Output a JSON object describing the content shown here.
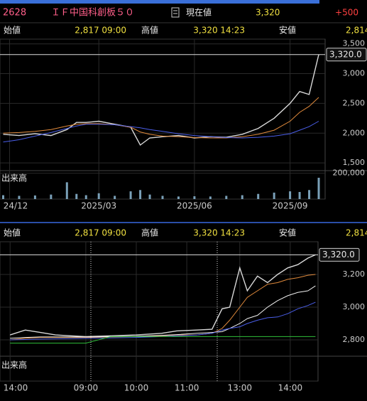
{
  "header": {
    "code": "2628",
    "name": "ＩＦ中国科創板５０",
    "price_label": "現在値",
    "price": "3,320",
    "change": "+500"
  },
  "stats": {
    "open_label": "始値",
    "open": "2,817 09:00",
    "high_label": "高値",
    "high": "3,320 14:23",
    "low_label": "安値",
    "low": "2,814"
  },
  "chart_data": [
    {
      "type": "line",
      "x": [
        0,
        0.5,
        1,
        1.5,
        2,
        2.3,
        2.6,
        3,
        3.5,
        4,
        4.3,
        4.6,
        5,
        5.5,
        6,
        6.5,
        7,
        7.5,
        8,
        8.5,
        9,
        9.3,
        9.6,
        9.9
      ],
      "xlim": [
        -0.1,
        10.1
      ],
      "xticks": [
        {
          "value": 0.2,
          "label": "24/12"
        },
        {
          "value": 3,
          "label": "2025/03"
        },
        {
          "value": 6,
          "label": "2025/06"
        },
        {
          "value": 9,
          "label": "2025/09"
        }
      ],
      "ylim": [
        1370,
        3580
      ],
      "yticks": [
        {
          "value": 3500,
          "label": "3,500"
        },
        {
          "value": 3000,
          "label": "3,000"
        },
        {
          "value": 2500,
          "label": "2,500"
        },
        {
          "value": 2000,
          "label": "2,000"
        },
        {
          "value": 1500,
          "label": "1,500"
        }
      ],
      "grid": true,
      "last_value": 3320,
      "last_label": "3,320.0",
      "series": [
        {
          "color": "#d8d8d8",
          "values": [
            1980,
            1960,
            1990,
            1960,
            2060,
            2180,
            2180,
            2200,
            2150,
            2100,
            1800,
            1920,
            1940,
            1960,
            1920,
            1940,
            1930,
            1980,
            2080,
            2250,
            2500,
            2700,
            2650,
            3320
          ]
        },
        {
          "color": "#e08a3c",
          "values": [
            2000,
            2010,
            2030,
            2060,
            2120,
            2150,
            2160,
            2160,
            2140,
            2100,
            2020,
            1980,
            1950,
            1940,
            1925,
            1920,
            1920,
            1940,
            1980,
            2050,
            2200,
            2350,
            2450,
            2600
          ]
        },
        {
          "color": "#4a5ee8",
          "values": [
            1850,
            1890,
            1950,
            2010,
            2080,
            2120,
            2150,
            2150,
            2140,
            2110,
            2090,
            2060,
            2030,
            1990,
            1960,
            1940,
            1925,
            1920,
            1930,
            1950,
            1990,
            2050,
            2110,
            2200
          ]
        }
      ],
      "volume": {
        "label": "出来高",
        "color": "#7aa0b8",
        "values": [
          30000,
          25000,
          28000,
          35000,
          130000,
          40000,
          30000,
          45000,
          25000,
          60000,
          70000,
          35000,
          25000,
          20000,
          22000,
          20000,
          25000,
          30000,
          40000,
          50000,
          60000,
          55000,
          70000,
          165000
        ],
        "ylim": [
          0,
          220000
        ],
        "yticks": [
          {
            "value": 200000,
            "label": "200,000"
          }
        ]
      }
    },
    {
      "type": "line",
      "x": [
        0,
        0.3,
        0.6,
        0.9,
        1.2,
        1.5,
        2,
        2.5,
        3,
        3.3,
        3.7,
        4,
        4.2,
        4.35,
        4.55,
        4.7,
        4.9,
        5.1,
        5.3,
        5.5,
        5.7,
        5.9,
        6.05
      ],
      "xlim": [
        -0.2,
        6.1
      ],
      "xticks": [
        {
          "value": 0,
          "label": "14:00"
        },
        {
          "value": 1.5,
          "label": "09:00"
        },
        {
          "value": 2.5,
          "label": "10:00"
        },
        {
          "value": 3.5,
          "label": "11:00"
        },
        {
          "value": 4.55,
          "label": "13:00"
        },
        {
          "value": 5.55,
          "label": "14:00"
        }
      ],
      "ylim": [
        2700,
        3400
      ],
      "yticks": [
        {
          "value": 3200,
          "label": "3,200"
        },
        {
          "value": 3000,
          "label": "3,000"
        },
        {
          "value": 2800,
          "label": "2,800"
        }
      ],
      "grid": true,
      "last_value": 3320,
      "last_label": "3,320.0",
      "series": [
        {
          "color": "#d8d8d8",
          "values": [
            2830,
            2860,
            2845,
            2830,
            2825,
            2820,
            2825,
            2830,
            2840,
            2855,
            2860,
            2865,
            2990,
            3000,
            3240,
            3100,
            3190,
            3150,
            3200,
            3240,
            3260,
            3300,
            3320
          ]
        },
        {
          "color": "#e08a3c",
          "values": [
            2800,
            2810,
            2815,
            2815,
            2815,
            2815,
            2818,
            2820,
            2825,
            2830,
            2830,
            2840,
            2870,
            2920,
            3000,
            3060,
            3100,
            3140,
            3150,
            3170,
            3180,
            3195,
            3200
          ]
        },
        {
          "color": "#f0f0f0",
          "values": [
            2810,
            2815,
            2818,
            2818,
            2818,
            2818,
            2820,
            2822,
            2828,
            2832,
            2840,
            2845,
            2850,
            2870,
            2900,
            2930,
            2950,
            3000,
            3040,
            3070,
            3090,
            3100,
            3130
          ]
        },
        {
          "color": "#4a5ee8",
          "values": [
            2800,
            2802,
            2805,
            2806,
            2808,
            2810,
            2812,
            2815,
            2820,
            2825,
            2830,
            2840,
            2860,
            2870,
            2880,
            2900,
            2920,
            2935,
            2940,
            2960,
            2990,
            3010,
            3030
          ]
        },
        {
          "color": "#2fbf3a",
          "values": [
            2780,
            2780,
            2780,
            2780,
            2780,
            2780,
            2820,
            2820,
            2820,
            2820,
            2820,
            2820,
            2820,
            2820,
            2820,
            2820,
            2820,
            2820,
            2820,
            2820,
            2820,
            2820,
            2820
          ]
        }
      ],
      "volume": {
        "label": "出来高"
      }
    }
  ]
}
